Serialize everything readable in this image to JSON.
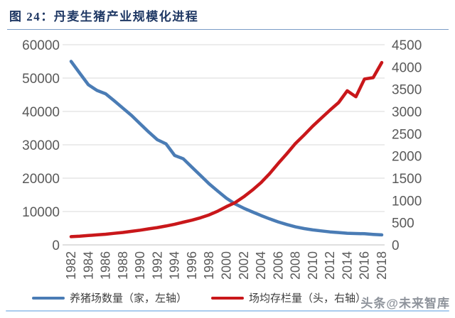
{
  "watermark": "头条@未来智库",
  "chart_data": {
    "type": "line",
    "title": "图 24：丹麦生猪产业规模化进程",
    "x": [
      1982,
      1983,
      1984,
      1985,
      1986,
      1987,
      1988,
      1989,
      1990,
      1991,
      1992,
      1993,
      1994,
      1995,
      1996,
      1997,
      1998,
      1999,
      2000,
      2001,
      2002,
      2003,
      2004,
      2005,
      2006,
      2007,
      2008,
      2009,
      2010,
      2011,
      2012,
      2013,
      2014,
      2015,
      2016,
      2017,
      2018
    ],
    "x_tick_labels": [
      "1982",
      "1984",
      "1986",
      "1988",
      "1990",
      "1992",
      "1994",
      "1996",
      "1998",
      "2000",
      "2002",
      "2004",
      "2006",
      "2008",
      "2010",
      "2012",
      "2014",
      "2016",
      "2018"
    ],
    "series": [
      {
        "id": "farms-line",
        "name": "养猪场数量（家，左轴）",
        "axis": "left",
        "color": "#4a7cb5",
        "values": [
          55000,
          51500,
          48000,
          46300,
          45300,
          43200,
          41000,
          38800,
          36300,
          33800,
          31500,
          30300,
          26800,
          25800,
          23300,
          20800,
          18300,
          16100,
          14000,
          12300,
          11000,
          9900,
          8800,
          7800,
          6900,
          6100,
          5400,
          4900,
          4500,
          4200,
          3900,
          3700,
          3500,
          3400,
          3350,
          3150,
          3000
        ]
      },
      {
        "id": "herd-line",
        "name": "场均存栏量（头，右轴）",
        "axis": "right",
        "color": "#c9171a",
        "values": [
          185,
          195,
          210,
          225,
          240,
          260,
          280,
          305,
          330,
          360,
          390,
          425,
          465,
          510,
          555,
          610,
          675,
          760,
          860,
          950,
          1080,
          1230,
          1400,
          1600,
          1830,
          2050,
          2280,
          2470,
          2670,
          2850,
          3030,
          3200,
          3465,
          3330,
          3730,
          3760,
          4100
        ]
      }
    ],
    "left_axis": {
      "min": 0,
      "max": 60000,
      "step": 10000,
      "tick_labels": [
        "0",
        "10000",
        "20000",
        "30000",
        "40000",
        "50000",
        "60000"
      ]
    },
    "right_axis": {
      "min": 0,
      "max": 4500,
      "step": 500,
      "tick_labels": [
        "0",
        "500",
        "1000",
        "1500",
        "2000",
        "2500",
        "3000",
        "3500",
        "4000",
        "4500"
      ]
    },
    "grid": "horizontal",
    "legend_position": "bottom",
    "colors": {
      "grid": "#d9d9d9",
      "baseline": "#bfbfbf",
      "axis_text": "#595959"
    }
  }
}
